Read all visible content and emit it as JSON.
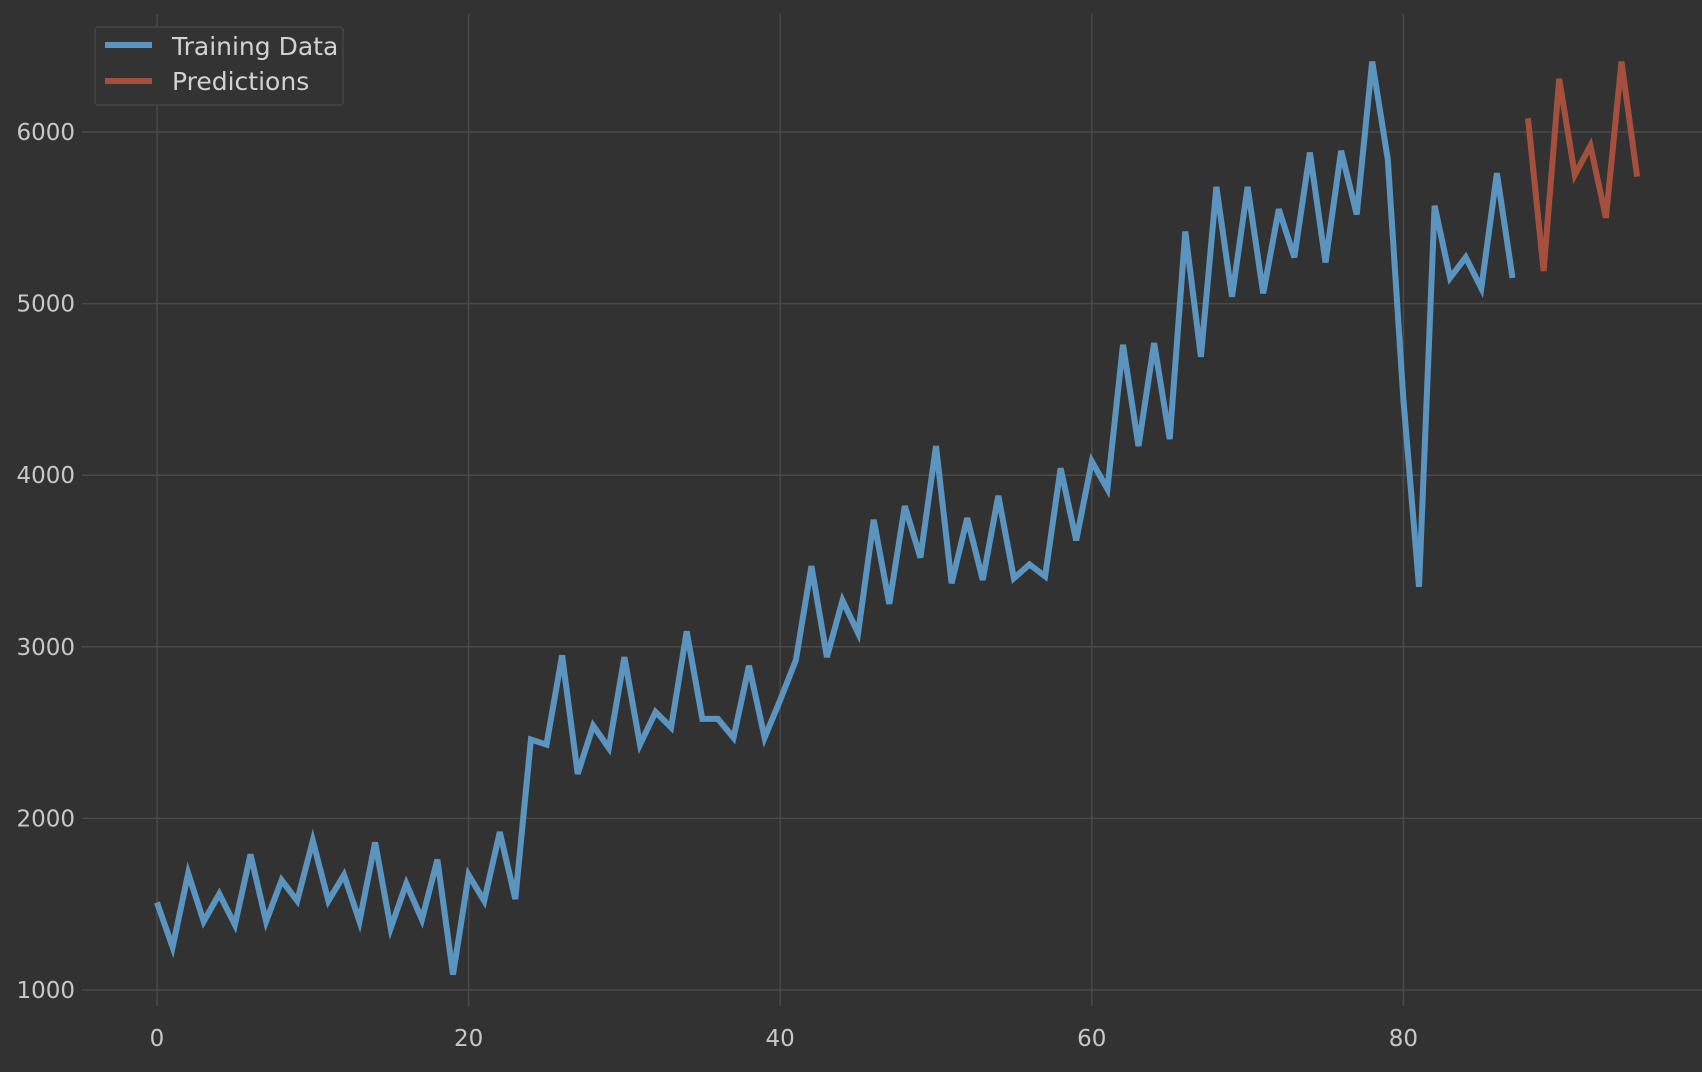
{
  "chart_data": {
    "type": "line",
    "title": "",
    "xlabel": "",
    "ylabel": "",
    "xlim": [
      -4,
      99
    ],
    "ylim": [
      840,
      6700
    ],
    "x_ticks": [
      0,
      20,
      40,
      60,
      80
    ],
    "y_ticks": [
      1000,
      2000,
      3000,
      4000,
      5000,
      6000
    ],
    "grid": true,
    "legend_position": "top-left",
    "series": [
      {
        "name": "Training Data",
        "color": "#5b95bf",
        "x_start": 0,
        "values": [
          1510,
          1250,
          1680,
          1400,
          1560,
          1380,
          1790,
          1400,
          1640,
          1520,
          1870,
          1520,
          1670,
          1400,
          1860,
          1360,
          1620,
          1410,
          1760,
          1090,
          1670,
          1520,
          1920,
          1530,
          2460,
          2430,
          2950,
          2260,
          2540,
          2410,
          2940,
          2430,
          2620,
          2530,
          3090,
          2580,
          2580,
          2470,
          2890,
          2470,
          2690,
          2920,
          3470,
          2940,
          3270,
          3080,
          3740,
          3250,
          3820,
          3520,
          4170,
          3370,
          3750,
          3390,
          3880,
          3400,
          3480,
          3410,
          4040,
          3620,
          4080,
          3920,
          4760,
          4170,
          4770,
          4210,
          5420,
          4690,
          5680,
          5040,
          5680,
          5060,
          5550,
          5270,
          5880,
          5240,
          5890,
          5520,
          6410,
          5840,
          4440,
          3350,
          5570,
          5150,
          5270,
          5090,
          5760,
          5150
        ]
      },
      {
        "name": "Predictions",
        "color": "#a5503c",
        "x_start": 88,
        "values": [
          6080,
          5190,
          6310,
          5750,
          5920,
          5500,
          6410,
          5740
        ]
      }
    ]
  }
}
